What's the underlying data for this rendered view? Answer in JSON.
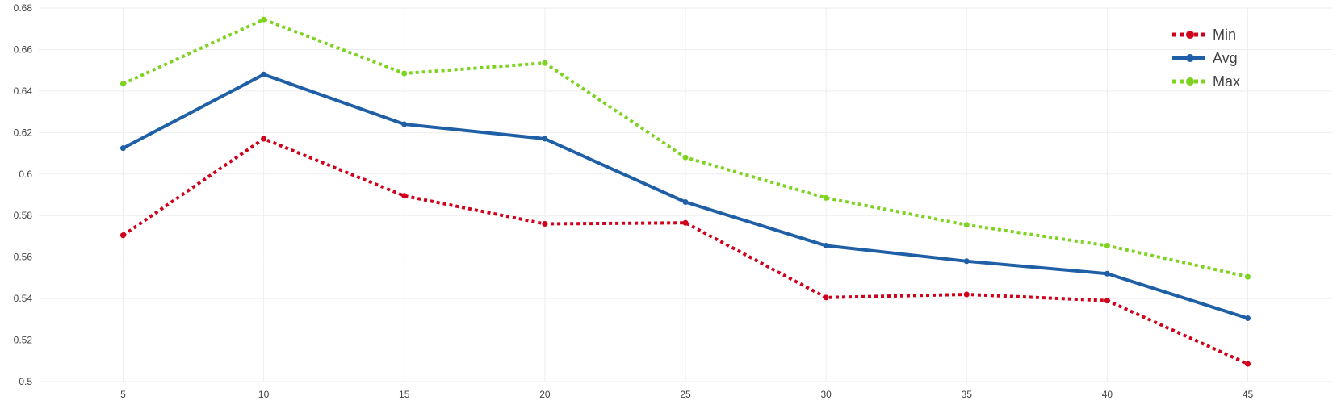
{
  "chart_data": {
    "type": "line",
    "title": "",
    "xlabel": "",
    "ylabel": "",
    "x": [
      5,
      10,
      15,
      20,
      25,
      30,
      35,
      40,
      45
    ],
    "xlim": [
      2,
      48
    ],
    "ylim": [
      0.5,
      0.68
    ],
    "xticks": [
      "5",
      "10",
      "15",
      "20",
      "25",
      "30",
      "35",
      "40",
      "45"
    ],
    "yticks": [
      "0.5",
      "0.52",
      "0.54",
      "0.56",
      "0.58",
      "0.6",
      "0.62",
      "0.64",
      "0.66",
      "0.68"
    ],
    "grid": true,
    "legend_position": "top-right",
    "series": [
      {
        "name": "Min",
        "color": "#d0021b",
        "dash": "dotted",
        "values": [
          0.5705,
          0.617,
          0.5895,
          0.576,
          0.5765,
          0.5405,
          0.542,
          0.539,
          0.5085
        ]
      },
      {
        "name": "Avg",
        "color": "#1f5fa6",
        "dash": "solid",
        "values": [
          0.6125,
          0.648,
          0.624,
          0.617,
          0.5865,
          0.5655,
          0.558,
          0.552,
          0.5305
        ]
      },
      {
        "name": "Max",
        "color": "#7ed321",
        "dash": "dotted",
        "values": [
          0.6435,
          0.6745,
          0.6485,
          0.6535,
          0.608,
          0.5885,
          0.5755,
          0.5655,
          0.5505
        ]
      }
    ]
  }
}
